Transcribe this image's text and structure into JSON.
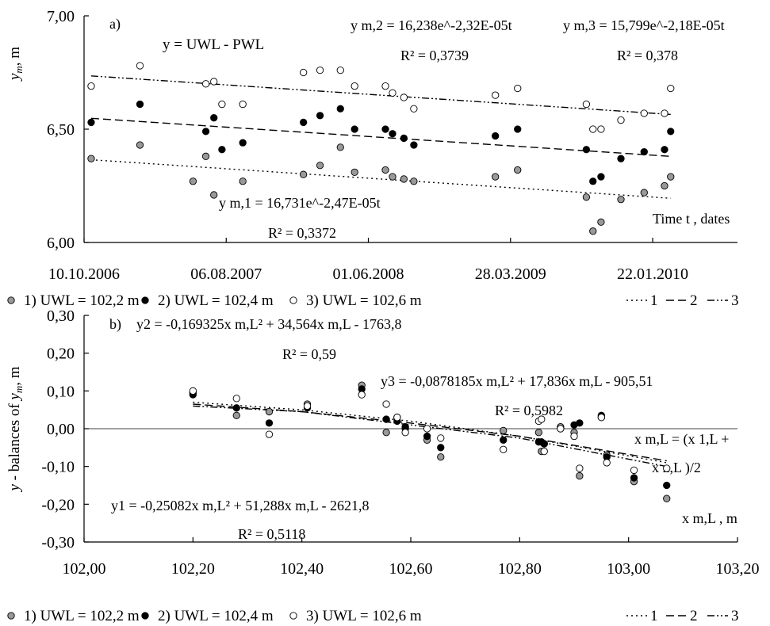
{
  "chart_data": [
    {
      "panel_label": "a)",
      "type": "scatter",
      "ylabel": "y_m , m",
      "xlabel": "Time t , dates",
      "ylim": [
        6.0,
        7.0
      ],
      "yticks": [
        "6,00",
        "6,50",
        "7,00"
      ],
      "xticks": [
        "10.10.2006",
        "06.08.2007",
        "01.06.2008",
        "28.03.2009",
        "22.01.2010"
      ],
      "grid": false,
      "legend_position": "bottom",
      "annotations": {
        "label_y": "y = UWL - PWL",
        "eq2": "y m,2 = 16,238e^-2,32E-05t",
        "eq2_r2": "R² = 0,3739",
        "eq3": "y m,3 = 15,799e^-2,18E-05t",
        "eq3_r2": "R² = 0,378",
        "eq1": "y m,1 = 16,731e^-2,47E-05t",
        "eq1_r2": "R² = 0,3372"
      },
      "series": [
        {
          "name": "1) UWL = 102,2 m",
          "marker": "gray",
          "x": [
            "2006-10-25",
            "2007-02-05",
            "2007-05-28",
            "2007-06-24",
            "2007-07-11",
            "2007-09-10",
            "2008-01-16",
            "2008-02-20",
            "2008-04-03",
            "2008-05-03",
            "2008-07-07",
            "2008-07-22",
            "2008-08-15",
            "2008-09-05",
            "2009-02-24",
            "2009-04-12",
            "2009-09-04",
            "2009-09-18",
            "2009-10-05",
            "2009-11-16",
            "2010-01-04",
            "2010-02-16",
            "2010-03-01"
          ],
          "values": [
            6.37,
            6.43,
            6.27,
            6.38,
            6.21,
            6.27,
            6.3,
            6.34,
            6.42,
            6.31,
            6.32,
            6.29,
            6.28,
            6.27,
            6.29,
            6.32,
            6.2,
            6.05,
            6.09,
            6.19,
            6.22,
            6.25,
            6.29
          ]
        },
        {
          "name": "2) UWL = 102,4 m",
          "marker": "black",
          "x": [
            "2006-10-25",
            "2007-02-05",
            "2007-06-24",
            "2007-07-11",
            "2007-07-28",
            "2007-09-10",
            "2008-01-16",
            "2008-02-20",
            "2008-04-03",
            "2008-05-03",
            "2008-07-07",
            "2008-07-22",
            "2008-08-15",
            "2008-09-05",
            "2009-02-24",
            "2009-04-12",
            "2009-09-04",
            "2009-09-18",
            "2009-10-05",
            "2009-11-16",
            "2010-01-04",
            "2010-02-16",
            "2010-03-01"
          ],
          "values": [
            6.53,
            6.61,
            6.49,
            6.55,
            6.41,
            6.44,
            6.53,
            6.56,
            6.59,
            6.5,
            6.5,
            6.48,
            6.46,
            6.43,
            6.47,
            6.5,
            6.41,
            6.27,
            6.29,
            6.37,
            6.4,
            6.41,
            6.49
          ]
        },
        {
          "name": "3) UWL = 102,6 m",
          "marker": "white",
          "x": [
            "2006-10-25",
            "2007-02-05",
            "2007-06-24",
            "2007-07-11",
            "2007-07-28",
            "2007-09-10",
            "2008-01-16",
            "2008-02-20",
            "2008-04-03",
            "2008-05-03",
            "2008-07-07",
            "2008-07-22",
            "2008-08-15",
            "2008-09-05",
            "2009-02-24",
            "2009-04-12",
            "2009-09-04",
            "2009-09-18",
            "2009-10-05",
            "2009-11-16",
            "2010-01-04",
            "2010-02-16",
            "2010-03-01"
          ],
          "values": [
            6.69,
            6.78,
            6.7,
            6.71,
            6.61,
            6.61,
            6.75,
            6.76,
            6.76,
            6.69,
            6.69,
            6.66,
            6.64,
            6.59,
            6.65,
            6.68,
            6.61,
            6.5,
            6.5,
            6.54,
            6.57,
            6.57,
            6.68
          ]
        }
      ],
      "trendlines": [
        {
          "name": "1",
          "style": "dotted",
          "x": [
            "2006-10-25",
            "2010-03-01"
          ],
          "values": [
            6.365,
            6.195
          ]
        },
        {
          "name": "2",
          "style": "dashed",
          "x": [
            "2006-10-25",
            "2010-03-01"
          ],
          "values": [
            6.548,
            6.38
          ]
        },
        {
          "name": "3",
          "style": "dash-dot-dot",
          "x": [
            "2006-10-25",
            "2010-03-01"
          ],
          "values": [
            6.735,
            6.565
          ]
        }
      ]
    },
    {
      "panel_label": "b)",
      "type": "scatter",
      "ylabel": "y - balances of y_m , m",
      "xlabel": "x m,L , m",
      "xlim": [
        102.0,
        103.2
      ],
      "ylim": [
        -0.3,
        0.3
      ],
      "xticks": [
        "102,00",
        "102,20",
        "102,40",
        "102,60",
        "102,80",
        "103,00",
        "103,20"
      ],
      "yticks": [
        "0,30",
        "0,20",
        "0,10",
        "0,00",
        "-0,10",
        "-0,20",
        "-0,30"
      ],
      "grid": false,
      "legend_position": "bottom",
      "annotations": {
        "eq2": "y2 = -0,169325x m,L² + 34,564x m,L - 1763,8",
        "eq2_r2": "R² = 0,59",
        "eq3": "y3 = -0,0878185x m,L² + 17,836x m,L - 905,51",
        "eq3_r2": "R² = 0,5982",
        "note_a": "x m,L = (x 1,L +",
        "note_b": "x n,L )/2",
        "eq1": "y1 = -0,25082x m,L² + 51,288x m,L - 2621,8",
        "eq1_r2": "R² = 0,5118"
      },
      "series": [
        {
          "name": "1) UWL = 102,2 m",
          "marker": "gray",
          "x": [
            102.2,
            102.28,
            102.34,
            102.41,
            102.51,
            102.555,
            102.575,
            102.59,
            102.63,
            102.655,
            102.77,
            102.835,
            102.84,
            102.845,
            102.875,
            102.9,
            102.91,
            102.95,
            102.96,
            103.01,
            103.07
          ],
          "values": [
            0.095,
            0.035,
            0.045,
            0.065,
            0.115,
            -0.01,
            0.03,
            0.0,
            -0.03,
            -0.075,
            -0.005,
            -0.01,
            -0.06,
            -0.04,
            0.005,
            -0.01,
            -0.125,
            0.03,
            -0.07,
            -0.14,
            -0.185
          ]
        },
        {
          "name": "2) UWL = 102,4 m",
          "marker": "black",
          "x": [
            102.2,
            102.28,
            102.34,
            102.41,
            102.51,
            102.555,
            102.575,
            102.59,
            102.63,
            102.655,
            102.77,
            102.835,
            102.84,
            102.845,
            102.875,
            102.9,
            102.91,
            102.95,
            102.96,
            103.01,
            103.07
          ],
          "values": [
            0.09,
            0.055,
            0.015,
            0.055,
            0.105,
            0.025,
            0.02,
            0.005,
            -0.02,
            -0.05,
            -0.03,
            -0.035,
            -0.035,
            -0.04,
            0.0,
            0.01,
            0.015,
            0.035,
            -0.075,
            -0.13,
            -0.15
          ]
        },
        {
          "name": "3) UWL = 102,6 m",
          "marker": "white",
          "x": [
            102.2,
            102.28,
            102.34,
            102.41,
            102.51,
            102.555,
            102.575,
            102.59,
            102.63,
            102.655,
            102.77,
            102.835,
            102.84,
            102.845,
            102.875,
            102.9,
            102.91,
            102.95,
            102.96,
            103.01,
            103.07
          ],
          "values": [
            0.1,
            0.08,
            -0.015,
            0.06,
            0.09,
            0.065,
            0.03,
            -0.01,
            0.0,
            -0.025,
            -0.055,
            0.02,
            0.025,
            -0.06,
            0.0,
            -0.02,
            -0.105,
            0.03,
            -0.09,
            -0.11,
            -0.105
          ]
        }
      ],
      "trendlines": [
        {
          "name": "1",
          "style": "dotted",
          "x": [
            102.2,
            102.4,
            102.6,
            102.8,
            103.07
          ],
          "values": [
            0.07,
            0.05,
            0.02,
            -0.02,
            -0.09
          ]
        },
        {
          "name": "2",
          "style": "dashed",
          "x": [
            102.2,
            102.4,
            102.6,
            102.8,
            103.07
          ],
          "values": [
            0.065,
            0.045,
            0.015,
            -0.02,
            -0.085
          ]
        },
        {
          "name": "3",
          "style": "dash-dot-dot",
          "x": [
            102.2,
            102.4,
            102.6,
            102.8,
            103.07
          ],
          "values": [
            0.06,
            0.045,
            0.01,
            -0.025,
            -0.1
          ]
        }
      ]
    }
  ],
  "legend": {
    "items": [
      {
        "label": "1) UWL = 102,2 m",
        "marker": "gray"
      },
      {
        "label": "2) UWL = 102,4 m",
        "marker": "black"
      },
      {
        "label": "3) UWL = 102,6 m",
        "marker": "white"
      }
    ],
    "lines": [
      {
        "label": "1",
        "style": "dotted"
      },
      {
        "label": "2",
        "style": "dashed"
      },
      {
        "label": "3",
        "style": "dash-dot-dot"
      }
    ]
  },
  "colors": {
    "gray": "#999999",
    "black": "#000000",
    "white": "#ffffff",
    "stroke": "#000000"
  }
}
